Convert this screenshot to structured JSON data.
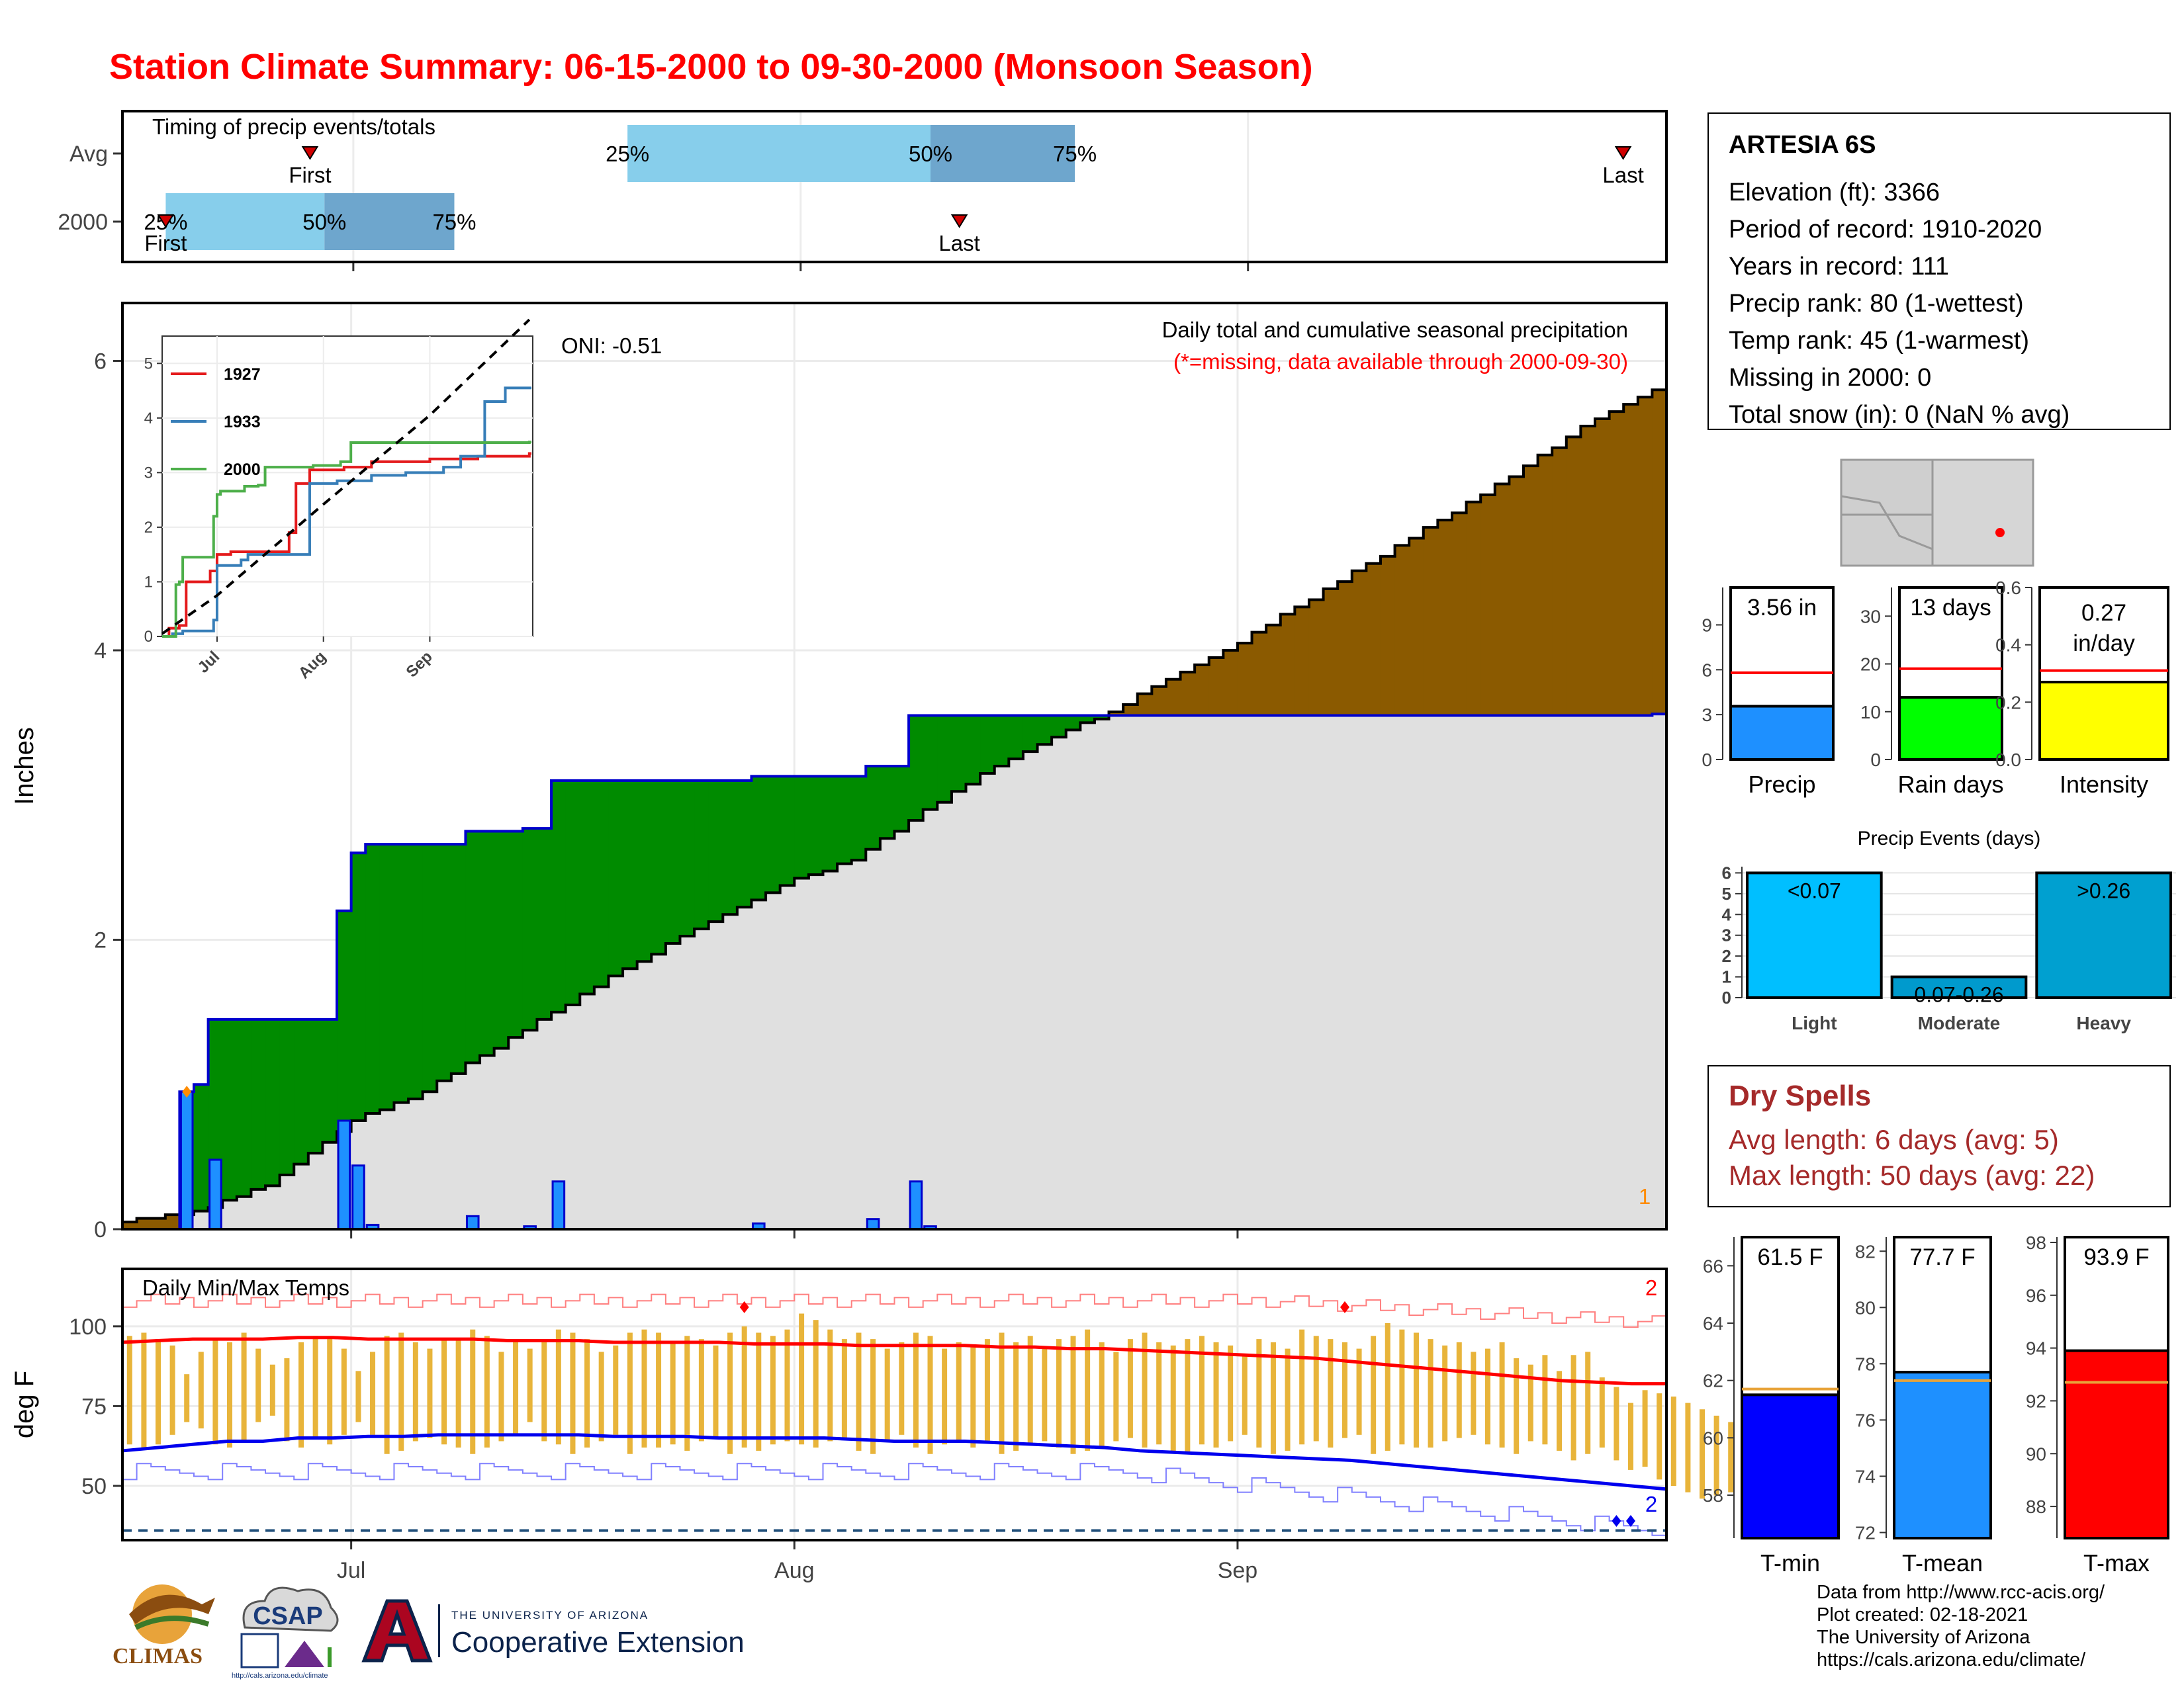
{
  "title": "Station Climate Summary: 06-15-2000 to 09-30-2000 (Monsoon Season)",
  "station": {
    "name": "ARTESIA 6S",
    "lines": [
      "Elevation (ft): 3366",
      "Period of record: 1910-2020",
      "Years in record: 111",
      "Precip rank: 80 (1-wettest)",
      "Temp rank: 45 (1-warmest)",
      "Missing in 2000: 0",
      "Total snow (in): 0 (NaN % avg)"
    ]
  },
  "dry_spells": {
    "title": "Dry Spells",
    "avg": "Avg length: 6 days (avg: 5)",
    "max": "Max length: 50 days (avg: 22)"
  },
  "credits": [
    "Data from http://www.rcc-acis.org/",
    "Plot created: 02-18-2021",
    "The University of Arizona",
    "https://cals.arizona.edu/climate/"
  ],
  "logos": {
    "climas": "CLIMAS",
    "csap": "CSAP",
    "csap_url": "http://cals.arizona.edu/climate",
    "ua_line1": "THE UNIVERSITY OF ARIZONA",
    "ua_line2": "Cooperative Extension"
  },
  "colors": {
    "title": "#ff0000",
    "deficit_brown": "#8b5a00",
    "surplus_green": "#008b00",
    "climatology_gray": "#e0e0e0",
    "daily_precip_blue": "#1e90ff",
    "temp_bar_orange": "#e8b43a",
    "tmax_red": "#ff0000",
    "tmin_blue": "#0000ee",
    "pct_light": "#87ceeb",
    "pct_dark": "#6ea6cd",
    "dry_spells": "#a52a2a"
  },
  "chart_data": [
    {
      "id": "timing",
      "type": "timeline",
      "title": "Timing of precip events/totals",
      "rows": [
        {
          "label": "Avg",
          "first": "2000-06-28",
          "last": "2000-09-27",
          "p25": "2000-07-20",
          "p50": "2000-08-10",
          "p75": "2000-08-20",
          "p25_label": "25%",
          "p50_label": "50%",
          "p75_label": "75%",
          "first_label": "First",
          "last_label": "Last"
        },
        {
          "label": "2000",
          "first": "2000-06-18",
          "last": "2000-08-12",
          "p25": "2000-06-18",
          "p50": "2000-06-29",
          "p75": "2000-07-08",
          "p25_label": "25%",
          "p50_label": "50%",
          "p75_label": "75%",
          "first_label": "First",
          "last_label": "Last"
        }
      ],
      "xlim": [
        "2000-06-15",
        "2000-09-30"
      ]
    },
    {
      "id": "precip",
      "type": "area",
      "title": "Daily total and cumulative seasonal precipitation",
      "subtitle": "(*=missing, data available through 2000-09-30)",
      "ylabel": "Inches",
      "ylim": [
        0,
        6.4
      ],
      "yticks": [
        0,
        2,
        4,
        6
      ],
      "xlim": [
        "2000-06-15",
        "2000-09-30"
      ],
      "xticks": [
        {
          "date": "2000-07-01",
          "label": "Jul"
        },
        {
          "date": "2000-08-01",
          "label": "Aug"
        },
        {
          "date": "2000-09-01",
          "label": "Sep"
        }
      ],
      "oni": "ONI: -0.51",
      "corner_label": "1",
      "observed_cumulative": [
        {
          "date": "2000-06-18",
          "value": 0.0
        },
        {
          "date": "2000-06-19",
          "value": 0.95
        },
        {
          "date": "2000-06-20",
          "value": 1.0
        },
        {
          "date": "2000-06-21",
          "value": 1.45
        },
        {
          "date": "2000-06-30",
          "value": 2.2
        },
        {
          "date": "2000-07-01",
          "value": 2.6
        },
        {
          "date": "2000-07-02",
          "value": 2.66
        },
        {
          "date": "2000-07-09",
          "value": 2.75
        },
        {
          "date": "2000-07-13",
          "value": 2.77
        },
        {
          "date": "2000-07-15",
          "value": 3.1
        },
        {
          "date": "2000-07-29",
          "value": 3.13
        },
        {
          "date": "2000-08-06",
          "value": 3.2
        },
        {
          "date": "2000-08-09",
          "value": 3.55
        },
        {
          "date": "2000-09-30",
          "value": 3.56
        }
      ],
      "normal_cumulative": [
        {
          "date": "2000-06-15",
          "value": 0.05
        },
        {
          "date": "2000-06-20",
          "value": 0.12
        },
        {
          "date": "2000-06-25",
          "value": 0.3
        },
        {
          "date": "2000-07-01",
          "value": 0.75
        },
        {
          "date": "2000-07-05",
          "value": 0.9
        },
        {
          "date": "2000-07-10",
          "value": 1.2
        },
        {
          "date": "2000-07-15",
          "value": 1.5
        },
        {
          "date": "2000-07-20",
          "value": 1.8
        },
        {
          "date": "2000-07-25",
          "value": 2.08
        },
        {
          "date": "2000-08-01",
          "value": 2.42
        },
        {
          "date": "2000-08-05",
          "value": 2.55
        },
        {
          "date": "2000-08-10",
          "value": 2.9
        },
        {
          "date": "2000-08-15",
          "value": 3.2
        },
        {
          "date": "2000-08-20",
          "value": 3.45
        },
        {
          "date": "2000-08-23",
          "value": 3.58
        },
        {
          "date": "2000-08-28",
          "value": 3.85
        },
        {
          "date": "2000-09-01",
          "value": 4.05
        },
        {
          "date": "2000-09-05",
          "value": 4.3
        },
        {
          "date": "2000-09-10",
          "value": 4.6
        },
        {
          "date": "2000-09-15",
          "value": 4.9
        },
        {
          "date": "2000-09-20",
          "value": 5.2
        },
        {
          "date": "2000-09-25",
          "value": 5.55
        },
        {
          "date": "2000-09-30",
          "value": 5.8
        }
      ],
      "daily": [
        {
          "date": "2000-06-19",
          "value": 0.95
        },
        {
          "date": "2000-06-21",
          "value": 0.48
        },
        {
          "date": "2000-06-30",
          "value": 0.75
        },
        {
          "date": "2000-07-01",
          "value": 0.44
        },
        {
          "date": "2000-07-02",
          "value": 0.03
        },
        {
          "date": "2000-07-09",
          "value": 0.09
        },
        {
          "date": "2000-07-13",
          "value": 0.02
        },
        {
          "date": "2000-07-15",
          "value": 0.33
        },
        {
          "date": "2000-07-29",
          "value": 0.04
        },
        {
          "date": "2000-08-06",
          "value": 0.07
        },
        {
          "date": "2000-08-09",
          "value": 0.33
        },
        {
          "date": "2000-08-10",
          "value": 0.02
        }
      ]
    },
    {
      "id": "inset",
      "type": "line",
      "ylim": [
        0,
        5.5
      ],
      "yticks": [
        0,
        1,
        2,
        3,
        4,
        5
      ],
      "xticks": [
        {
          "date": "2000-07-01",
          "label": "Jul"
        },
        {
          "date": "2000-08-01",
          "label": "Aug"
        },
        {
          "date": "2000-09-01",
          "label": "Sep"
        }
      ],
      "legend_position": "top-left",
      "series": [
        {
          "name": "1927",
          "color": "#e41a1c",
          "values": [
            {
              "date": "2000-06-15",
              "value": 0
            },
            {
              "date": "2000-06-17",
              "value": 0.15
            },
            {
              "date": "2000-06-20",
              "value": 0.2
            },
            {
              "date": "2000-06-22",
              "value": 1.0
            },
            {
              "date": "2000-06-29",
              "value": 1.2
            },
            {
              "date": "2000-07-01",
              "value": 1.5
            },
            {
              "date": "2000-07-05",
              "value": 1.55
            },
            {
              "date": "2000-07-22",
              "value": 1.9
            },
            {
              "date": "2000-07-24",
              "value": 2.8
            },
            {
              "date": "2000-07-28",
              "value": 3.05
            },
            {
              "date": "2000-08-07",
              "value": 3.1
            },
            {
              "date": "2000-08-15",
              "value": 3.2
            },
            {
              "date": "2000-09-01",
              "value": 3.25
            },
            {
              "date": "2000-09-15",
              "value": 3.3
            },
            {
              "date": "2000-09-30",
              "value": 3.35
            }
          ]
        },
        {
          "name": "1933",
          "color": "#377eb8",
          "values": [
            {
              "date": "2000-06-15",
              "value": 0
            },
            {
              "date": "2000-06-18",
              "value": 0.05
            },
            {
              "date": "2000-06-21",
              "value": 0.1
            },
            {
              "date": "2000-06-30",
              "value": 0.3
            },
            {
              "date": "2000-07-01",
              "value": 1.3
            },
            {
              "date": "2000-07-08",
              "value": 1.4
            },
            {
              "date": "2000-07-10",
              "value": 1.5
            },
            {
              "date": "2000-07-28",
              "value": 2.8
            },
            {
              "date": "2000-08-05",
              "value": 2.85
            },
            {
              "date": "2000-08-15",
              "value": 2.95
            },
            {
              "date": "2000-08-25",
              "value": 3.0
            },
            {
              "date": "2000-09-05",
              "value": 3.1
            },
            {
              "date": "2000-09-10",
              "value": 3.3
            },
            {
              "date": "2000-09-17",
              "value": 4.3
            },
            {
              "date": "2000-09-23",
              "value": 4.55
            },
            {
              "date": "2000-09-30",
              "value": 4.55
            }
          ]
        },
        {
          "name": "2000",
          "color": "#4daf4a",
          "values": [
            {
              "date": "2000-06-15",
              "value": 0
            },
            {
              "date": "2000-06-19",
              "value": 0.95
            },
            {
              "date": "2000-06-20",
              "value": 1.0
            },
            {
              "date": "2000-06-21",
              "value": 1.45
            },
            {
              "date": "2000-06-30",
              "value": 2.2
            },
            {
              "date": "2000-07-01",
              "value": 2.6
            },
            {
              "date": "2000-07-02",
              "value": 2.66
            },
            {
              "date": "2000-07-09",
              "value": 2.75
            },
            {
              "date": "2000-07-13",
              "value": 2.77
            },
            {
              "date": "2000-07-15",
              "value": 3.1
            },
            {
              "date": "2000-07-29",
              "value": 3.13
            },
            {
              "date": "2000-08-06",
              "value": 3.2
            },
            {
              "date": "2000-08-09",
              "value": 3.55
            },
            {
              "date": "2000-09-30",
              "value": 3.56
            }
          ]
        },
        {
          "name": "Avg",
          "color": "#000000",
          "dashed": true,
          "values": [
            {
              "date": "2000-06-15",
              "value": 0.05
            },
            {
              "date": "2000-07-01",
              "value": 0.75
            },
            {
              "date": "2000-08-01",
              "value": 2.42
            },
            {
              "date": "2000-09-01",
              "value": 4.05
            },
            {
              "date": "2000-09-30",
              "value": 5.8
            }
          ]
        }
      ],
      "legend": [
        "1927",
        "1933",
        "2000"
      ]
    },
    {
      "id": "temps",
      "type": "bar",
      "title": "Daily Min/Max Temps",
      "ylabel": "deg F",
      "ylim": [
        33,
        118
      ],
      "yticks": [
        50,
        75,
        100
      ],
      "xlim": [
        "2000-06-15",
        "2000-09-30"
      ],
      "xticks": [
        {
          "date": "2000-07-01",
          "label": "Jul"
        },
        {
          "date": "2000-08-01",
          "label": "Aug"
        },
        {
          "date": "2000-09-01",
          "label": "Sep"
        }
      ],
      "tmax_label": "2",
      "tmin_label": "2",
      "daily_tmax": [
        97,
        98,
        96,
        94,
        85,
        92,
        96,
        95,
        98,
        93,
        88,
        90,
        95,
        97,
        96,
        93,
        86,
        92,
        97,
        98,
        95,
        93,
        96,
        96,
        99,
        97,
        92,
        95,
        93,
        96,
        99,
        98,
        96,
        92,
        94,
        98,
        99,
        98,
        95,
        97,
        96,
        94,
        98,
        100,
        98,
        97,
        99,
        104,
        102,
        99,
        96,
        98,
        96,
        93,
        95,
        98,
        97,
        93,
        95,
        94,
        96,
        98,
        95,
        97,
        93,
        96,
        97,
        99,
        95,
        92,
        96,
        98,
        95,
        94,
        96,
        97,
        95,
        94,
        91,
        96,
        95,
        93,
        99,
        97,
        96,
        95,
        93,
        97,
        101,
        99,
        98,
        96,
        94,
        95,
        92,
        93,
        95,
        90,
        88,
        91,
        86,
        91,
        92,
        84,
        81,
        76,
        80,
        79,
        78,
        76,
        74,
        72,
        70
      ],
      "daily_tmin": [
        63,
        62,
        63,
        66,
        70,
        68,
        63,
        62,
        64,
        70,
        72,
        64,
        62,
        65,
        63,
        66,
        70,
        66,
        60,
        61,
        64,
        65,
        63,
        62,
        60,
        62,
        64,
        66,
        70,
        64,
        63,
        60,
        62,
        64,
        66,
        60,
        62,
        62,
        63,
        61,
        64,
        65,
        60,
        62,
        61,
        63,
        64,
        63,
        62,
        64,
        65,
        61,
        60,
        64,
        66,
        62,
        60,
        63,
        64,
        62,
        64,
        60,
        61,
        63,
        64,
        62,
        60,
        61,
        62,
        64,
        65,
        62,
        63,
        61,
        60,
        63,
        62,
        64,
        66,
        62,
        60,
        61,
        63,
        64,
        62,
        65,
        66,
        60,
        61,
        63,
        62,
        62,
        64,
        65,
        66,
        63,
        62,
        60,
        64,
        63,
        61,
        58,
        60,
        62,
        58,
        55,
        56,
        52,
        50,
        48,
        46,
        47,
        48
      ],
      "normal_tmax": [
        95,
        95.5,
        96,
        96,
        96,
        96.5,
        96.5,
        96,
        96,
        96,
        96,
        95.5,
        95.5,
        95.5,
        95,
        95,
        95,
        95,
        94.5,
        94.5,
        94.5,
        94,
        94,
        94,
        94,
        93.5,
        93.5,
        93,
        93,
        92.5,
        92,
        91.5,
        91,
        90.5,
        90,
        89,
        88,
        87,
        86,
        85,
        84,
        83,
        82.5,
        82,
        82
      ],
      "normal_tmin": [
        61,
        62,
        63,
        64,
        64,
        65,
        65,
        65.5,
        65.5,
        66,
        66,
        66,
        66,
        66,
        65.5,
        65.5,
        65.5,
        65,
        65,
        65,
        65,
        64.5,
        64,
        64,
        64,
        63.5,
        63,
        62.5,
        62,
        61,
        60.5,
        60,
        59.5,
        59,
        58.5,
        58,
        57,
        56,
        55,
        54,
        53,
        52,
        51,
        50,
        49
      ],
      "record_high_markers": [
        "2000-07-28",
        "2000-09-08"
      ],
      "record_low_markers": [
        "2000-09-27",
        "2000-09-28"
      ]
    },
    {
      "id": "precip_total",
      "type": "bar",
      "categories": [
        "Precip"
      ],
      "values": [
        3.56
      ],
      "normal": 5.8,
      "label": "3.56 in",
      "ylim": [
        0,
        11.5
      ],
      "yticks": [
        0,
        3,
        6,
        9
      ],
      "color": "#1e90ff"
    },
    {
      "id": "rain_days",
      "type": "bar",
      "categories": [
        "Rain days"
      ],
      "values": [
        13
      ],
      "normal": 19,
      "label": "13 days",
      "ylim": [
        0,
        36
      ],
      "yticks": [
        0,
        10,
        20,
        30
      ],
      "color": "#00ff00"
    },
    {
      "id": "intensity",
      "type": "bar",
      "categories": [
        "Intensity"
      ],
      "values": [
        0.27
      ],
      "normal": 0.31,
      "label_line1": "0.27",
      "label_line2": "in/day",
      "ylim": [
        0,
        0.6
      ],
      "yticks": [
        "0.0",
        "0.2",
        "0.4",
        "0.6"
      ],
      "color": "#ffff00"
    },
    {
      "id": "events",
      "type": "bar",
      "title": "Precip Events (days)",
      "categories": [
        "Light",
        "Moderate",
        "Heavy"
      ],
      "values": [
        6,
        1,
        6
      ],
      "labels": [
        "<0.07",
        "0.07-0.26",
        ">0.26"
      ],
      "colors": [
        "#00bfff",
        "#009acd",
        "#00a0d0"
      ],
      "ylim": [
        0,
        6.3
      ],
      "yticks": [
        0,
        1,
        2,
        3,
        4,
        5,
        6
      ]
    },
    {
      "id": "tmin_mean",
      "type": "bar",
      "categories": [
        "T-min"
      ],
      "values": [
        61.5
      ],
      "normal": 61.7,
      "label": "61.5 F",
      "ylim": [
        56.5,
        67
      ],
      "yticks": [
        58,
        60,
        62,
        64,
        66
      ],
      "color": "#0000ff"
    },
    {
      "id": "tmean_mean",
      "type": "bar",
      "categories": [
        "T-mean"
      ],
      "values": [
        77.7
      ],
      "normal": 77.4,
      "label": "77.7 F",
      "ylim": [
        71.8,
        82.5
      ],
      "yticks": [
        72,
        74,
        76,
        78,
        80,
        82
      ],
      "color": "#1e90ff"
    },
    {
      "id": "tmax_mean",
      "type": "bar",
      "categories": [
        "T-max"
      ],
      "values": [
        93.9
      ],
      "normal": 92.7,
      "label": "93.9 F",
      "ylim": [
        86.8,
        98.2
      ],
      "yticks": [
        88,
        90,
        92,
        94,
        96,
        98
      ],
      "color": "#ff0000"
    }
  ]
}
